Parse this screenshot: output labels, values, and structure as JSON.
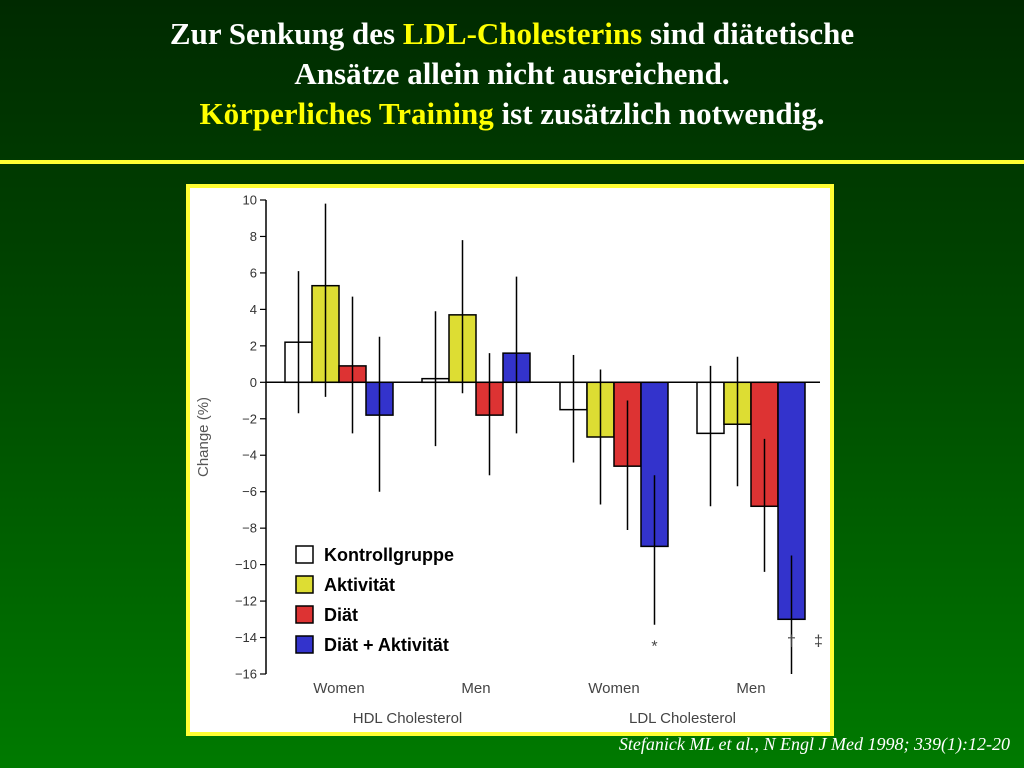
{
  "slide": {
    "title_line1_a": "Zur Senkung des ",
    "title_line1_hl": "LDL-Cholesterins",
    "title_line1_b": " sind diätetische",
    "title_line2": "Ansätze allein nicht ausreichend.",
    "title_line3_hl": "Körperliches Training",
    "title_line3_b": " ist zusätzlich notwendig.",
    "citation": "Stefanick ML et al., N Engl J Med 1998; 339(1):12-20",
    "colors": {
      "highlight": "#ffff00",
      "rule": "#ffff33",
      "background_top": "#002a00",
      "background_bottom": "#007a00"
    }
  },
  "chart_data": {
    "type": "bar",
    "ylabel": "Change (%)",
    "ylim": [
      -16,
      10
    ],
    "yticks": [
      10,
      8,
      6,
      4,
      2,
      0,
      -2,
      -4,
      -6,
      -8,
      -10,
      -12,
      -14,
      -16
    ],
    "ytick_labels": [
      "10",
      "8",
      "6",
      "4",
      "2",
      "0",
      "−2",
      "−4",
      "−6",
      "−8",
      "−10",
      "−12",
      "−14",
      "−16"
    ],
    "groups": [
      {
        "name": "HDL Cholesterol",
        "categories": [
          "Women",
          "Men"
        ]
      },
      {
        "name": "LDL Cholesterol",
        "categories": [
          "Women",
          "Men"
        ]
      }
    ],
    "categories": [
      "Women",
      "Men",
      "Women",
      "Men"
    ],
    "series": [
      {
        "name": "Kontrollgruppe",
        "color": "#ffffff",
        "values": [
          2.2,
          0.2,
          -1.5,
          -2.8
        ],
        "err_high": [
          6.1,
          3.9,
          1.5,
          0.9
        ],
        "err_low": [
          -1.7,
          -3.5,
          -4.4,
          -6.8
        ]
      },
      {
        "name": "Aktivität",
        "color": "#dddd33",
        "values": [
          5.3,
          3.7,
          -3.0,
          -2.3
        ],
        "err_high": [
          9.8,
          7.8,
          0.7,
          1.4
        ],
        "err_low": [
          -0.8,
          -0.6,
          -6.7,
          -5.7
        ]
      },
      {
        "name": "Diät",
        "color": "#dd3333",
        "values": [
          0.9,
          -1.8,
          -4.6,
          -6.8
        ],
        "err_high": [
          4.7,
          1.6,
          -1.0,
          -3.1
        ],
        "err_low": [
          -2.8,
          -5.1,
          -8.1,
          -10.4
        ]
      },
      {
        "name": "Diät + Aktivität",
        "color": "#3333cc",
        "values": [
          -1.8,
          1.6,
          -9.0,
          -13.0
        ],
        "err_high": [
          2.5,
          5.8,
          -5.1,
          -9.5
        ],
        "err_low": [
          -6.0,
          -2.8,
          -13.3,
          -16.0
        ]
      }
    ],
    "annotations": [
      {
        "text": "*",
        "category_index": 2,
        "series_index": 3,
        "y": -14.5
      },
      {
        "text": "†",
        "category_index": 3,
        "series_index": 3,
        "y": -14.2
      },
      {
        "text": "‡",
        "category_index": 3,
        "series_index": 3,
        "y": -14.2,
        "after": true
      }
    ],
    "legend_position": "bottom-center"
  }
}
